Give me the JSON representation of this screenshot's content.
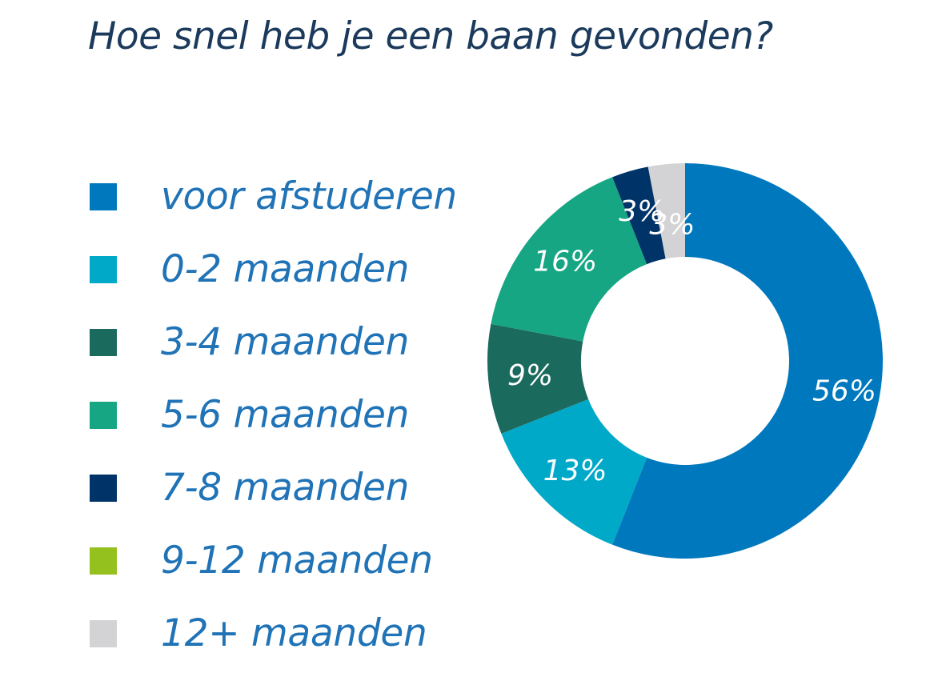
{
  "chart_data": {
    "type": "pie",
    "title": "Hoe snel heb je een baan gevonden?",
    "categories": [
      "voor afstuderen",
      "0-2 maanden",
      "3-4 maanden",
      "5-6 maanden",
      "7-8 maanden",
      "9-12 maanden",
      "12+ maanden"
    ],
    "values": [
      56,
      13,
      9,
      16,
      3,
      0,
      3
    ],
    "value_labels": [
      "56%",
      "13%",
      "9%",
      "16%",
      "3%",
      "",
      "3%"
    ],
    "colors": [
      "#0078be",
      "#00a9c8",
      "#1b6a5e",
      "#16a683",
      "#003468",
      "#95c11f",
      "#d3d3d5"
    ],
    "donut": true,
    "legend": "left"
  }
}
